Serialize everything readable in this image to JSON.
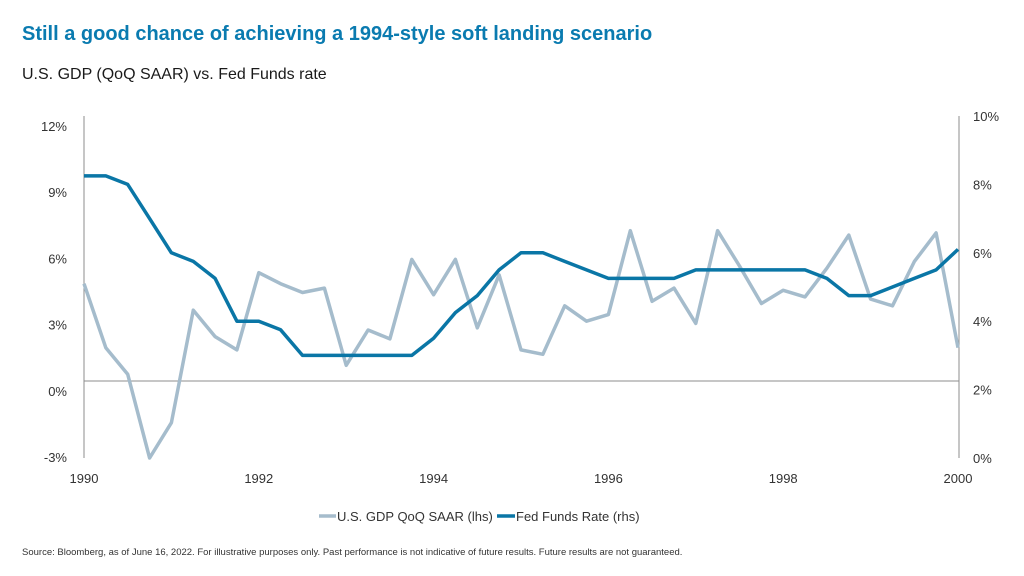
{
  "title": "Still a good chance of achieving a 1994-style soft landing scenario",
  "subtitle": "U.S. GDP (QoQ SAAR) vs. Fed Funds rate",
  "source": "Source: Bloomberg, as of June 16, 2022. For illustrative purposes only. Past performance is not indicative of future results. Future results are not guaranteed.",
  "chart_data": {
    "type": "line",
    "x_start": 1990,
    "x_step_years": 0.25,
    "xlim": [
      1990,
      2000
    ],
    "x_ticks": [
      "1990",
      "1992",
      "1994",
      "1996",
      "1998",
      "2000"
    ],
    "y_left": {
      "ylim": [
        -3.5,
        12
      ],
      "ticks": [
        -3,
        0,
        3,
        6,
        9,
        12
      ],
      "tick_labels": [
        "-3%",
        "0%",
        "3%",
        "6%",
        "9%",
        "12%"
      ]
    },
    "y_right": {
      "ylim": [
        0,
        10
      ],
      "ticks": [
        0,
        2,
        4,
        6,
        8,
        10
      ],
      "tick_labels": [
        "0%",
        "2%",
        "4%",
        "6%",
        "8%",
        "10%"
      ]
    },
    "grid": false,
    "legend_position": "bottom",
    "series": [
      {
        "name": "U.S. GDP QoQ SAAR (lhs)",
        "axis": "left",
        "color": "#a5bccc",
        "values": [
          4.4,
          1.5,
          0.3,
          -3.5,
          -1.9,
          3.2,
          2.0,
          1.4,
          4.9,
          4.4,
          4.0,
          4.2,
          0.7,
          2.3,
          1.9,
          5.5,
          3.9,
          5.5,
          2.4,
          4.8,
          1.4,
          1.2,
          3.4,
          2.7,
          3.0,
          6.8,
          3.6,
          4.2,
          2.6,
          6.8,
          5.2,
          3.5,
          4.1,
          3.8,
          5.1,
          6.6,
          3.7,
          3.4,
          5.4,
          6.7,
          1.5
        ]
      },
      {
        "name": "Fed Funds Rate (rhs)",
        "axis": "right",
        "color": "#0a76a6",
        "values": [
          8.25,
          8.25,
          8.0,
          7.0,
          6.0,
          5.75,
          5.25,
          4.0,
          4.0,
          3.75,
          3.0,
          3.0,
          3.0,
          3.0,
          3.0,
          3.0,
          3.5,
          4.25,
          4.75,
          5.5,
          6.0,
          6.0,
          5.75,
          5.5,
          5.25,
          5.25,
          5.25,
          5.25,
          5.5,
          5.5,
          5.5,
          5.5,
          5.5,
          5.5,
          5.25,
          4.75,
          4.75,
          5.0,
          5.25,
          5.5,
          6.1
        ]
      }
    ]
  }
}
